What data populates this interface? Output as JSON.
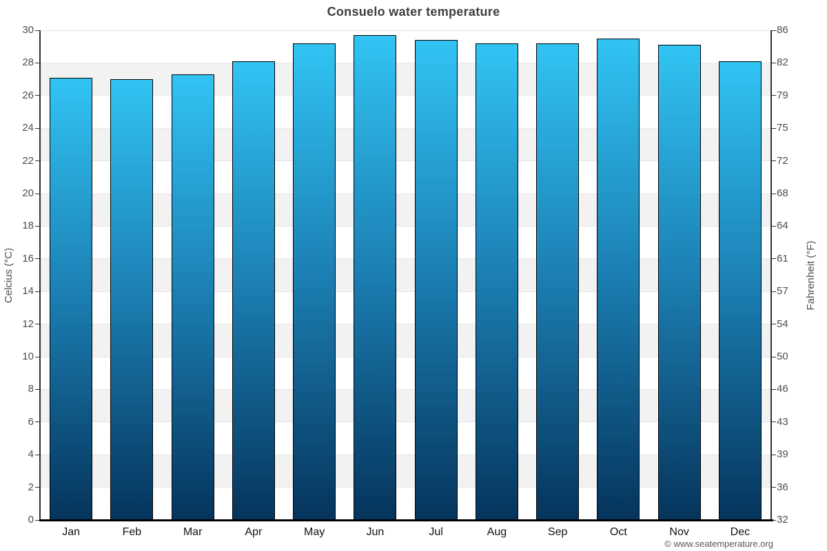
{
  "page": {
    "copyright": "© www.seatemperature.org"
  },
  "chart_data": {
    "type": "bar",
    "title": "Consuelo water temperature",
    "categories": [
      "Jan",
      "Feb",
      "Mar",
      "Apr",
      "May",
      "Jun",
      "Jul",
      "Aug",
      "Sep",
      "Oct",
      "Nov",
      "Dec"
    ],
    "values": [
      27.1,
      27.0,
      27.3,
      28.1,
      29.2,
      29.7,
      29.4,
      29.2,
      29.2,
      29.5,
      29.1,
      28.1
    ],
    "ylim": [
      0,
      30
    ],
    "grid": true,
    "legend": false,
    "y_axis_left": {
      "label": "Celcius (°C)",
      "ticks": [
        30,
        28,
        26,
        24,
        22,
        20,
        18,
        16,
        14,
        12,
        10,
        8,
        6,
        4,
        2,
        0
      ]
    },
    "y_axis_right": {
      "label": "Fahrenheit (°F)",
      "ticks": [
        86,
        82,
        79,
        75,
        72,
        68,
        64,
        61,
        57,
        54,
        50,
        46,
        43,
        39,
        36,
        32
      ]
    },
    "colors": {
      "bar_gradient_top": "#31c4f3",
      "bar_gradient_mid": "#1c80b4",
      "bar_gradient_bottom": "#05345c",
      "bar_border": "#000000",
      "plot_band": "#f2f2f2",
      "gridline": "#e6e6e6",
      "axis_line": "#2f2f2f",
      "bottom_axis_line": "#000000",
      "title_text": "#3f3f3f",
      "tick_text": "#4d4d4d",
      "month_text": "#111111",
      "copyright_text": "#555555"
    }
  }
}
